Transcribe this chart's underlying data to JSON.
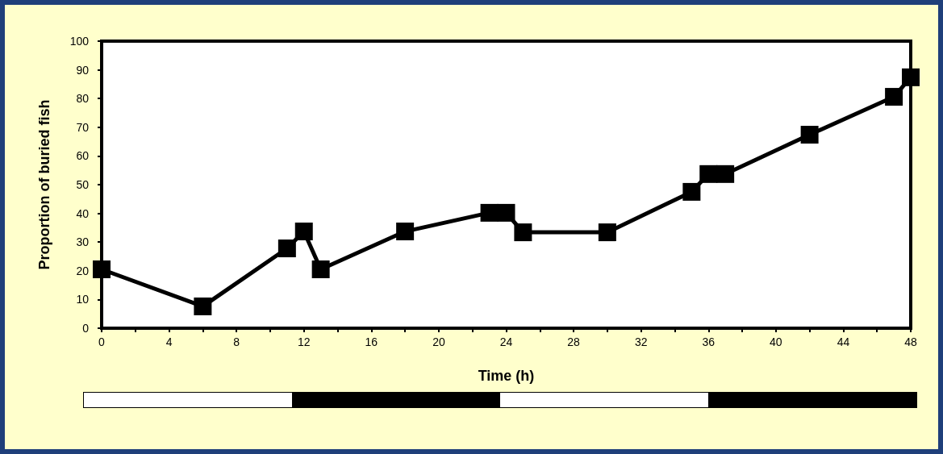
{
  "chart_data": {
    "type": "line",
    "xlabel": "Time (h)",
    "ylabel": "Proportion of buried fish",
    "x": [
      0,
      6,
      11,
      12,
      13,
      18,
      23,
      24,
      25,
      30,
      35,
      36,
      37,
      42,
      47,
      48
    ],
    "values": [
      20.5,
      7.6,
      27.8,
      33.7,
      20.5,
      33.7,
      40.2,
      40.2,
      33.4,
      33.4,
      47.5,
      53.7,
      53.7,
      67.4,
      80.6,
      87.4
    ],
    "color": "#000000",
    "marker": "square",
    "line_style": "solid",
    "grid": false,
    "xlim": [
      0,
      48
    ],
    "xticks": [
      0,
      {
        "value": 2,
        "label": null
      },
      4,
      {
        "value": 6,
        "label": null
      },
      8,
      {
        "value": 10,
        "label": null
      },
      12,
      {
        "value": 14,
        "label": null
      },
      16,
      {
        "value": 18,
        "label": null
      },
      20,
      {
        "value": 22,
        "label": null
      },
      24,
      {
        "value": 26,
        "label": null
      },
      28,
      {
        "value": 30,
        "label": null
      },
      32,
      {
        "value": 34,
        "label": null
      },
      36,
      {
        "value": 38,
        "label": null
      },
      40,
      {
        "value": 42,
        "label": null
      },
      44,
      {
        "value": 46,
        "label": null
      },
      48
    ],
    "ylim": [
      0,
      100
    ],
    "yticks": [
      0,
      10,
      20,
      30,
      40,
      50,
      60,
      70,
      80,
      90,
      100
    ]
  }
}
